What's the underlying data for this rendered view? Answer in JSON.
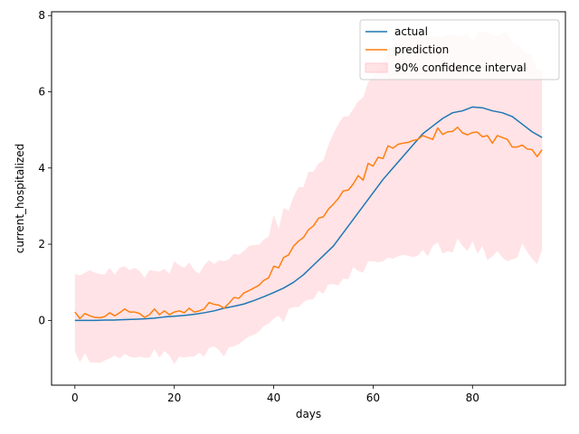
{
  "chart_data": {
    "type": "line",
    "title": "",
    "xlabel": "days",
    "ylabel": "current_hospitalized",
    "xlim": [
      -4.7,
      98.7
    ],
    "ylim": [
      -1.7,
      8.1
    ],
    "xticks": [
      0,
      20,
      40,
      60,
      80
    ],
    "yticks": [
      0,
      2,
      4,
      6,
      8
    ],
    "grid": false,
    "legend": "top-right",
    "colors": {
      "actual": "#1f77b4",
      "prediction": "#ff7f0e",
      "band_fill": "#ffc0c8"
    },
    "series": [
      {
        "name": "actual",
        "x": [
          0,
          2,
          4,
          6,
          8,
          10,
          12,
          14,
          16,
          18,
          20,
          22,
          24,
          26,
          28,
          30,
          32,
          34,
          36,
          38,
          40,
          42,
          44,
          46,
          48,
          50,
          52,
          54,
          56,
          58,
          60,
          62,
          64,
          66,
          68,
          70,
          72,
          74,
          76,
          78,
          80,
          82,
          84,
          86,
          88,
          90,
          92,
          94
        ],
        "values": [
          0.0,
          0.0,
          0.0,
          0.01,
          0.01,
          0.02,
          0.03,
          0.04,
          0.06,
          0.09,
          0.11,
          0.13,
          0.16,
          0.2,
          0.25,
          0.32,
          0.37,
          0.43,
          0.52,
          0.62,
          0.73,
          0.85,
          1.0,
          1.2,
          1.45,
          1.7,
          1.95,
          2.3,
          2.65,
          3.0,
          3.35,
          3.7,
          4.0,
          4.3,
          4.6,
          4.9,
          5.1,
          5.3,
          5.45,
          5.5,
          5.6,
          5.58,
          5.5,
          5.45,
          5.35,
          5.15,
          4.95,
          4.8
        ]
      },
      {
        "name": "prediction",
        "x": [
          0,
          1,
          2,
          3,
          4,
          5,
          6,
          7,
          8,
          9,
          10,
          11,
          12,
          13,
          14,
          15,
          16,
          17,
          18,
          19,
          20,
          21,
          22,
          23,
          24,
          25,
          26,
          27,
          28,
          29,
          30,
          31,
          32,
          33,
          34,
          35,
          36,
          37,
          38,
          39,
          40,
          41,
          42,
          43,
          44,
          45,
          46,
          47,
          48,
          49,
          50,
          51,
          52,
          53,
          54,
          55,
          56,
          57,
          58,
          59,
          60,
          61,
          62,
          63,
          64,
          65,
          66,
          67,
          68,
          69,
          70,
          71,
          72,
          73,
          74,
          75,
          76,
          77,
          78,
          79,
          80,
          81,
          82,
          83,
          84,
          85,
          86,
          87,
          88,
          89,
          90,
          91,
          92,
          93,
          94
        ],
        "values": [
          0.22,
          0.05,
          0.18,
          0.12,
          0.08,
          0.07,
          0.1,
          0.2,
          0.12,
          0.2,
          0.3,
          0.22,
          0.22,
          0.18,
          0.08,
          0.15,
          0.3,
          0.15,
          0.25,
          0.15,
          0.22,
          0.25,
          0.2,
          0.32,
          0.22,
          0.25,
          0.3,
          0.47,
          0.42,
          0.4,
          0.32,
          0.45,
          0.6,
          0.58,
          0.72,
          0.78,
          0.85,
          0.92,
          1.05,
          1.12,
          1.42,
          1.38,
          1.65,
          1.72,
          1.95,
          2.08,
          2.18,
          2.38,
          2.48,
          2.68,
          2.72,
          2.92,
          3.05,
          3.2,
          3.4,
          3.42,
          3.58,
          3.8,
          3.68,
          4.12,
          4.05,
          4.28,
          4.25,
          4.58,
          4.52,
          4.62,
          4.65,
          4.67,
          4.72,
          4.75,
          4.85,
          4.8,
          4.75,
          5.05,
          4.88,
          4.95,
          4.96,
          5.07,
          4.92,
          4.87,
          4.93,
          4.94,
          4.82,
          4.85,
          4.65,
          4.85,
          4.8,
          4.75,
          4.55,
          4.55,
          4.6,
          4.5,
          4.48,
          4.3,
          4.48
        ]
      },
      {
        "name": "90% confidence interval",
        "type": "band",
        "x": [
          0,
          1,
          2,
          3,
          4,
          5,
          6,
          7,
          8,
          9,
          10,
          11,
          12,
          13,
          14,
          15,
          16,
          17,
          18,
          19,
          20,
          21,
          22,
          23,
          24,
          25,
          26,
          27,
          28,
          29,
          30,
          31,
          32,
          33,
          34,
          35,
          36,
          37,
          38,
          39,
          40,
          41,
          42,
          43,
          44,
          45,
          46,
          47,
          48,
          49,
          50,
          51,
          52,
          53,
          54,
          55,
          56,
          57,
          58,
          59,
          60,
          61,
          62,
          63,
          64,
          65,
          66,
          67,
          68,
          69,
          70,
          71,
          72,
          73,
          74,
          75,
          76,
          77,
          78,
          79,
          80,
          81,
          82,
          83,
          84,
          85,
          86,
          87,
          88,
          89,
          90,
          91,
          92,
          93,
          94
        ],
        "lower": [
          -0.82,
          -1.1,
          -0.86,
          -1.1,
          -1.1,
          -1.12,
          -1.05,
          -1.0,
          -0.92,
          -1.0,
          -0.88,
          -0.95,
          -0.98,
          -0.95,
          -0.98,
          -0.98,
          -0.75,
          -0.98,
          -0.8,
          -0.92,
          -1.15,
          -0.95,
          -0.98,
          -0.95,
          -0.95,
          -0.85,
          -0.95,
          -0.72,
          -0.68,
          -0.78,
          -0.95,
          -0.7,
          -0.68,
          -0.62,
          -0.52,
          -0.42,
          -0.38,
          -0.3,
          -0.15,
          -0.08,
          0.05,
          0.12,
          -0.05,
          0.3,
          0.35,
          0.35,
          0.48,
          0.55,
          0.55,
          0.78,
          0.7,
          0.95,
          0.95,
          0.92,
          1.1,
          1.08,
          1.4,
          1.3,
          1.25,
          1.55,
          1.55,
          1.52,
          1.55,
          1.65,
          1.62,
          1.68,
          1.72,
          1.7,
          1.66,
          1.7,
          1.85,
          1.68,
          1.95,
          2.05,
          1.75,
          1.82,
          1.78,
          2.15,
          1.95,
          1.82,
          2.08,
          1.75,
          1.95,
          1.58,
          1.68,
          1.82,
          1.65,
          1.55,
          1.6,
          1.65,
          2.02,
          1.8,
          1.62,
          1.48,
          1.85
        ],
        "upper": [
          1.22,
          1.18,
          1.25,
          1.32,
          1.25,
          1.22,
          1.2,
          1.38,
          1.2,
          1.38,
          1.42,
          1.32,
          1.38,
          1.3,
          1.12,
          1.32,
          1.3,
          1.28,
          1.35,
          1.22,
          1.55,
          1.45,
          1.38,
          1.52,
          1.32,
          1.22,
          1.45,
          1.58,
          1.48,
          1.58,
          1.55,
          1.6,
          1.75,
          1.72,
          1.82,
          1.95,
          1.98,
          1.98,
          2.12,
          2.2,
          2.78,
          2.4,
          2.95,
          2.88,
          3.25,
          3.5,
          3.5,
          3.9,
          3.9,
          4.12,
          4.2,
          4.6,
          4.9,
          5.15,
          5.35,
          5.35,
          5.55,
          5.75,
          5.85,
          6.25,
          6.4,
          6.6,
          6.8,
          7.15,
          7.2,
          7.4,
          7.45,
          7.55,
          7.6,
          7.6,
          7.45,
          7.45,
          7.45,
          7.45,
          7.45,
          7.5,
          7.5,
          7.45,
          7.45,
          7.55,
          7.3,
          7.55,
          7.6,
          7.55,
          7.5,
          7.45,
          7.55,
          7.55,
          7.3,
          7.25,
          7.1,
          7.0,
          6.95,
          6.6,
          6.58
        ]
      }
    ]
  }
}
